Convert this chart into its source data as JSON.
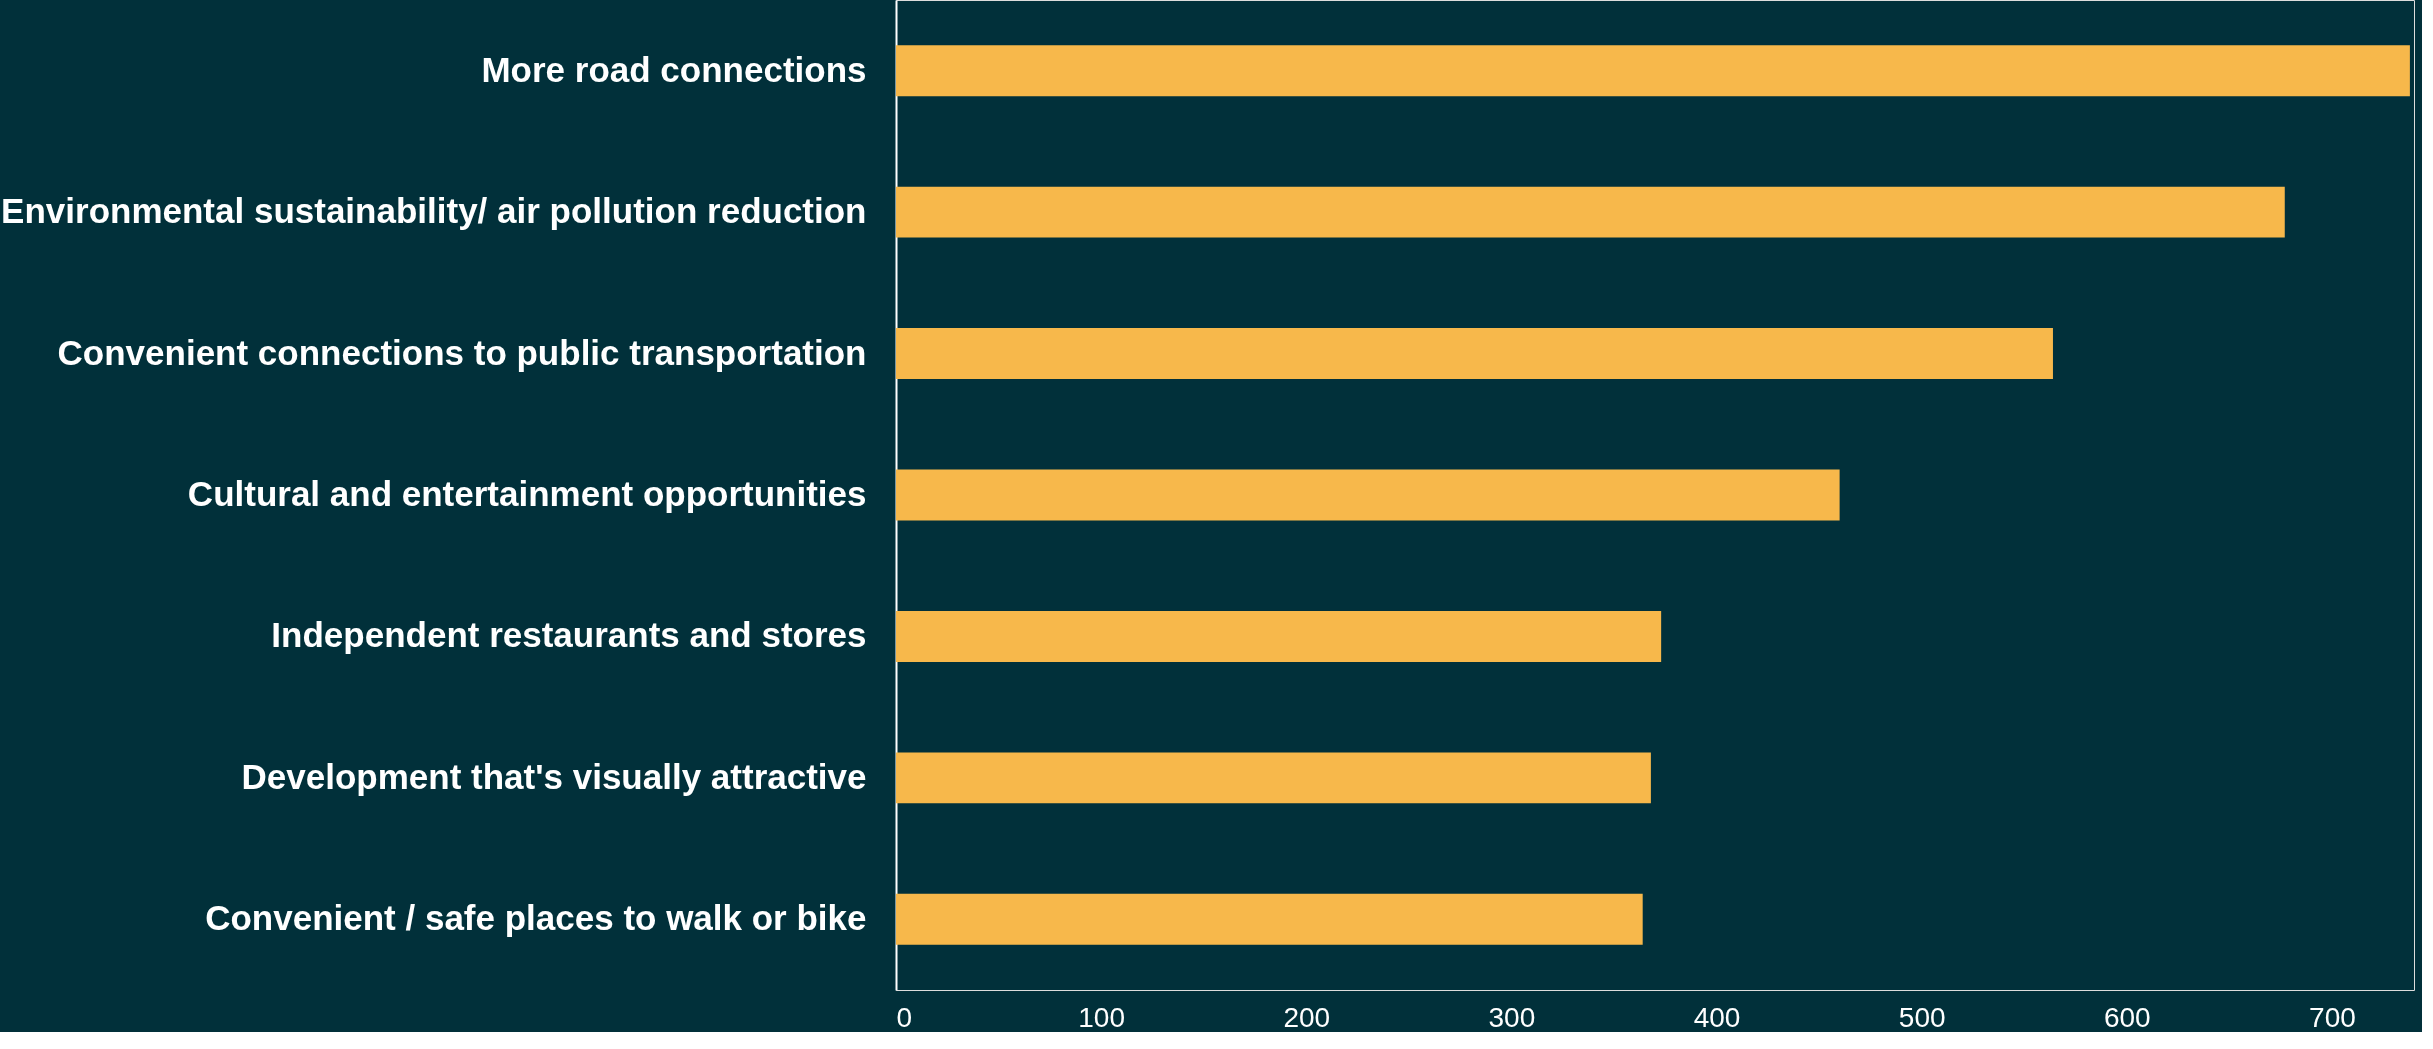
{
  "chart_data": {
    "type": "bar",
    "orientation": "horizontal",
    "categories": [
      "More road connections",
      "Environmental sustainability/ air pollution reduction",
      "Convenient connections to public transportation",
      "Cultural and entertainment opportunities",
      "Independent restaurants and stores",
      "Development that's visually attractive",
      "Convenient / safe places to walk or bike"
    ],
    "values": [
      738,
      677,
      564,
      460,
      373,
      368,
      364
    ],
    "color": "#f7b84b",
    "xlim": [
      0,
      740
    ],
    "xticks": [
      0,
      100,
      200,
      300,
      400,
      500,
      600,
      700
    ],
    "grid": false
  }
}
